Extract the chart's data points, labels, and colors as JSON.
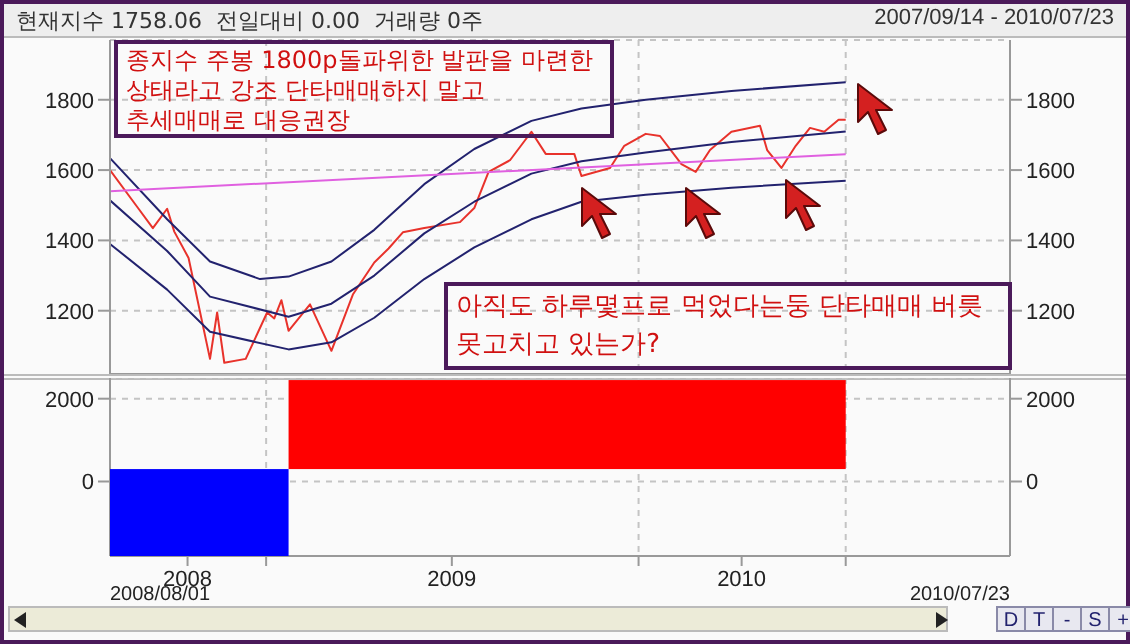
{
  "chart_data": [
    {
      "type": "line",
      "title": "현재지수 1758.06  전일대비 0.00  거래량 0주",
      "subtitle": "2007/09/14 - 2010/07/23",
      "xlim": [
        "2008-08-01",
        "2010-12-31"
      ],
      "xticks": [
        {
          "value": "2009-01-01",
          "label": null
        },
        {
          "value": "2010-01-01",
          "label": null
        },
        {
          "value": "2010-07-23",
          "label": null
        }
      ],
      "ylim": [
        1020,
        1970
      ],
      "yticks": [
        1200,
        1400,
        1600,
        1800
      ],
      "y2lim": [
        1020,
        1970
      ],
      "y2ticks": [
        1200,
        1400,
        1600,
        1800
      ],
      "tick_labels": "y",
      "grid": true,
      "marker": "none",
      "line_style": "solid",
      "annotations": [
        "종지수 주봉 1800p돌파위한 발판을 마련한 상태라고 강조 단타매매하지 말고 추세매매로 대응권장",
        "아직도 하루몇프로 먹었다는둥 단타매매 버릇 못고치고 있는가?"
      ],
      "series": [
        {
          "color": "#e8322b",
          "x": [
            "2008-08-01",
            "2008-08-29",
            "2008-09-12",
            "2008-09-26",
            "2008-10-03",
            "2008-10-17",
            "2008-11-07",
            "2008-11-14",
            "2008-11-21",
            "2008-12-12",
            "2009-01-02",
            "2009-01-09",
            "2009-01-16",
            "2009-01-23",
            "2009-02-13",
            "2009-03-06",
            "2009-03-27",
            "2009-04-17",
            "2009-05-01",
            "2009-05-15",
            "2009-06-05",
            "2009-07-10",
            "2009-07-24",
            "2009-08-07",
            "2009-08-28",
            "2009-09-18",
            "2009-10-02",
            "2009-10-30",
            "2009-11-06",
            "2009-12-04",
            "2009-12-18",
            "2010-01-08",
            "2010-01-22",
            "2010-02-12",
            "2010-02-26",
            "2010-03-12",
            "2010-04-02",
            "2010-04-30",
            "2010-05-07",
            "2010-05-21",
            "2010-06-04",
            "2010-06-18",
            "2010-07-02",
            "2010-07-16",
            "2010-07-23"
          ],
          "values": [
            1600,
            1490,
            1435,
            1490,
            1425,
            1350,
            1063,
            1195,
            1052,
            1063,
            1195,
            1178,
            1230,
            1143,
            1218,
            1086,
            1246,
            1337,
            1377,
            1423,
            1435,
            1452,
            1492,
            1595,
            1628,
            1709,
            1646,
            1646,
            1583,
            1606,
            1669,
            1703,
            1697,
            1617,
            1595,
            1657,
            1709,
            1726,
            1657,
            1606,
            1669,
            1720,
            1709,
            1743,
            1743
          ]
        },
        {
          "color": "#22226e",
          "x": [
            "2008-08-01",
            "2008-09-26",
            "2008-11-07",
            "2008-12-26",
            "2009-01-23",
            "2009-03-06",
            "2009-04-17",
            "2009-06-05",
            "2009-07-24",
            "2009-09-18",
            "2009-11-06",
            "2010-01-08",
            "2010-04-02",
            "2010-07-23"
          ],
          "values": [
            1634,
            1460,
            1340,
            1290,
            1297,
            1340,
            1430,
            1560,
            1660,
            1740,
            1775,
            1800,
            1825,
            1850
          ]
        },
        {
          "color": "#22226e",
          "x": [
            "2008-08-01",
            "2008-09-26",
            "2008-11-07",
            "2009-01-23",
            "2009-03-06",
            "2009-04-17",
            "2009-06-05",
            "2009-07-24",
            "2009-09-18",
            "2009-11-06",
            "2010-01-08",
            "2010-04-02",
            "2010-07-23"
          ],
          "values": [
            1514,
            1370,
            1240,
            1183,
            1220,
            1300,
            1420,
            1510,
            1590,
            1625,
            1650,
            1680,
            1710
          ]
        },
        {
          "color": "#22226e",
          "x": [
            "2008-08-01",
            "2008-09-26",
            "2008-11-07",
            "2009-01-23",
            "2009-03-06",
            "2009-04-17",
            "2009-06-05",
            "2009-07-24",
            "2009-09-18",
            "2009-11-06",
            "2010-01-08",
            "2010-04-02",
            "2010-07-23"
          ],
          "values": [
            1390,
            1260,
            1140,
            1090,
            1110,
            1180,
            1290,
            1380,
            1460,
            1510,
            1530,
            1550,
            1570
          ]
        },
        {
          "color": "#e060e0",
          "x": [
            "2008-08-01",
            "2010-07-23"
          ],
          "values": [
            1540,
            1645
          ]
        }
      ]
    },
    {
      "type": "histogram",
      "bins": [
        "2008-08-01",
        "2009-01-23",
        "2010-07-23"
      ],
      "base": [
        300,
        300
      ],
      "values": [
        -2100,
        2150
      ],
      "colors": [
        "#0000ff",
        "#ff0000"
      ],
      "xlim": [
        "2008-08-01",
        "2010-12-31"
      ],
      "xticks": [
        {
          "value": "2008-10-16",
          "label": "2008"
        },
        {
          "value": "2009-01-01",
          "label": null
        },
        {
          "value": "2009-07-02",
          "label": "2009"
        },
        {
          "value": "2010-01-01",
          "label": null
        },
        {
          "value": "2010-04-12",
          "label": "2010"
        },
        {
          "value": "2010-07-23",
          "label": null
        }
      ],
      "ylim": [
        -1800,
        2500
      ],
      "yticks": [
        0,
        2000
      ],
      "y2lim": [
        -1800,
        2500
      ],
      "y2ticks": [
        0,
        2000
      ],
      "grid": true,
      "annotations": [
        "2008/08/01",
        "2010/07/23",
        "D",
        "T",
        "-",
        "S",
        "+"
      ]
    }
  ]
}
